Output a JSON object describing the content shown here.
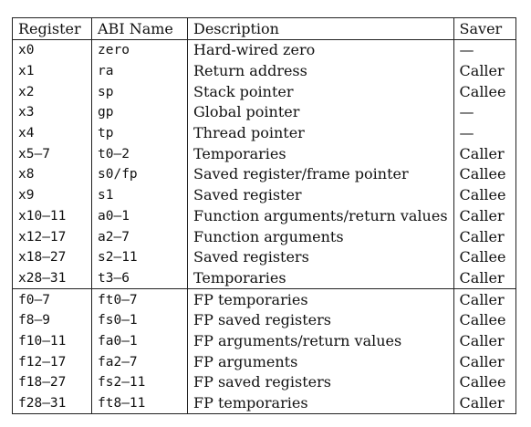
{
  "headers": [
    "Register",
    "ABI Name",
    "Description",
    "Saver"
  ],
  "rows": [
    [
      "x0",
      "zero",
      "Hard-wired zero",
      "—"
    ],
    [
      "x1",
      "ra",
      "Return address",
      "Caller"
    ],
    [
      "x2",
      "sp",
      "Stack pointer",
      "Callee"
    ],
    [
      "x3",
      "gp",
      "Global pointer",
      "—"
    ],
    [
      "x4",
      "tp",
      "Thread pointer",
      "—"
    ],
    [
      "x5–7",
      "t0–2",
      "Temporaries",
      "Caller"
    ],
    [
      "x8",
      "s0/fp",
      "Saved register/frame pointer",
      "Callee"
    ],
    [
      "x9",
      "s1",
      "Saved register",
      "Callee"
    ],
    [
      "x10–11",
      "a0–1",
      "Function arguments/return values",
      "Caller"
    ],
    [
      "x12–17",
      "a2–7",
      "Function arguments",
      "Caller"
    ],
    [
      "x18–27",
      "s2–11",
      "Saved registers",
      "Callee"
    ],
    [
      "x28–31",
      "t3–6",
      "Temporaries",
      "Caller"
    ],
    [
      "f0–7",
      "ft0–7",
      "FP temporaries",
      "Caller"
    ],
    [
      "f8–9",
      "fs0–1",
      "FP saved registers",
      "Callee"
    ],
    [
      "f10–11",
      "fa0–1",
      "FP arguments/return values",
      "Caller"
    ],
    [
      "f12–17",
      "fa2–7",
      "FP arguments",
      "Caller"
    ],
    [
      "f18–27",
      "fs2–11",
      "FP saved registers",
      "Callee"
    ],
    [
      "f28–31",
      "ft8–11",
      "FP temporaries",
      "Caller"
    ]
  ]
}
